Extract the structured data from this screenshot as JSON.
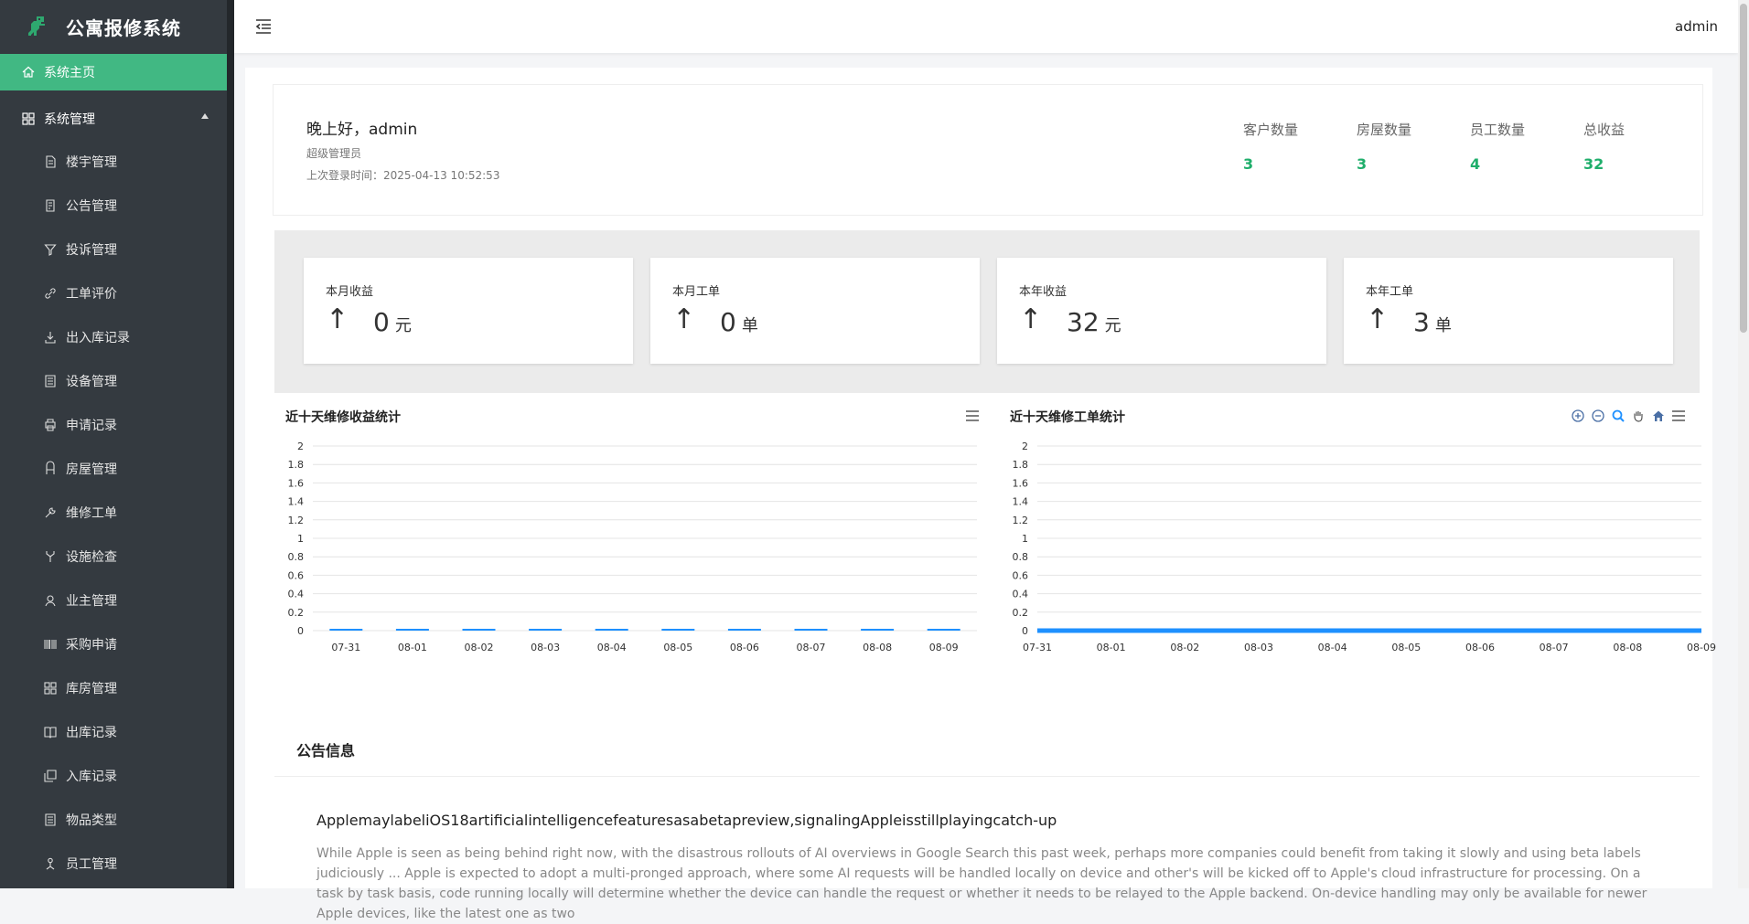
{
  "brand": {
    "title": "公寓报修系统"
  },
  "sidebar": {
    "home": "系统主页",
    "group": "系统管理",
    "items": [
      {
        "label": "楼宇管理",
        "icon": "document-icon"
      },
      {
        "label": "公告管理",
        "icon": "notice-icon"
      },
      {
        "label": "投诉管理",
        "icon": "filter-icon"
      },
      {
        "label": "工单评价",
        "icon": "link-icon"
      },
      {
        "label": "出入库记录",
        "icon": "download-icon"
      },
      {
        "label": "设备管理",
        "icon": "list-icon"
      },
      {
        "label": "申请记录",
        "icon": "printer-icon"
      },
      {
        "label": "房屋管理",
        "icon": "building-icon"
      },
      {
        "label": "维修工单",
        "icon": "wrench-icon"
      },
      {
        "label": "设施检查",
        "icon": "fork-icon"
      },
      {
        "label": "业主管理",
        "icon": "user-icon"
      },
      {
        "label": "采购申请",
        "icon": "barcode-icon"
      },
      {
        "label": "库房管理",
        "icon": "grid-icon"
      },
      {
        "label": "出库记录",
        "icon": "book-icon"
      },
      {
        "label": "入库记录",
        "icon": "copy-icon"
      },
      {
        "label": "物品类型",
        "icon": "list-icon"
      },
      {
        "label": "员工管理",
        "icon": "staff-icon"
      }
    ]
  },
  "header": {
    "user": "admin"
  },
  "welcome": {
    "greeting": "晚上好，admin",
    "role": "超级管理员",
    "last_login": "上次登录时间：2025-04-13 10:52:53",
    "stats": [
      {
        "label": "客户数量",
        "value": "3"
      },
      {
        "label": "房屋数量",
        "value": "3"
      },
      {
        "label": "员工数量",
        "value": "4"
      },
      {
        "label": "总收益",
        "value": "32"
      }
    ]
  },
  "cards": [
    {
      "title": "本月收益",
      "arrow": "↑",
      "value": "0",
      "unit": "元"
    },
    {
      "title": "本月工单",
      "arrow": "↑",
      "value": "0",
      "unit": "单"
    },
    {
      "title": "本年收益",
      "arrow": "↑",
      "value": "32",
      "unit": "元"
    },
    {
      "title": "本年工单",
      "arrow": "↑",
      "value": "3",
      "unit": "单"
    }
  ],
  "colors": {
    "accent": "#41b883",
    "stat": "#1fae6b",
    "bar": "#1e90ff",
    "sidebar": "#343a40"
  },
  "chart_data": [
    {
      "type": "bar",
      "title": "近十天维修收益统计",
      "categories": [
        "07-31",
        "08-01",
        "08-02",
        "08-03",
        "08-04",
        "08-05",
        "08-06",
        "08-07",
        "08-08",
        "08-09"
      ],
      "values": [
        0,
        0,
        0,
        0,
        0,
        0,
        0,
        0,
        0,
        0
      ],
      "ylim": [
        0,
        2
      ],
      "yticks": [
        "0",
        "0.2",
        "0.4",
        "0.6",
        "0.8",
        "1",
        "1.2",
        "1.4",
        "1.6",
        "1.8",
        "2"
      ],
      "grid": true
    },
    {
      "type": "area",
      "title": "近十天维修工单统计",
      "categories": [
        "07-31",
        "08-01",
        "08-02",
        "08-03",
        "08-04",
        "08-05",
        "08-06",
        "08-07",
        "08-08",
        "08-09"
      ],
      "values": [
        0,
        0,
        0,
        0,
        0,
        0,
        0,
        0,
        0,
        0
      ],
      "ylim": [
        0,
        2
      ],
      "yticks": [
        "0",
        "0.2",
        "0.4",
        "0.6",
        "0.8",
        "1",
        "1.2",
        "1.4",
        "1.6",
        "1.8",
        "2"
      ],
      "grid": true
    }
  ],
  "notice": {
    "title": "公告信息",
    "article_title": "ApplemaylabeliOS18artificialintelligencefeaturesasabetapreview,signalingAppleisstillplayingcatch-up",
    "article_body": "While Apple is seen as being behind right now, with the disastrous rollouts of AI overviews in Google Search this past week, perhaps more companies could benefit from taking it slowly and using beta labels judiciously ... Apple is expected to adopt a multi-pronged approach, where some AI requests will be handled locally on device and other's will be kicked off to Apple's cloud infrastructure for processing. On a task by task basis, code running locally will determine whether the device can handle the request or whether it needs to be relayed to the Apple backend. On-device handling may only be available for newer Apple devices, like the latest one as two"
  }
}
